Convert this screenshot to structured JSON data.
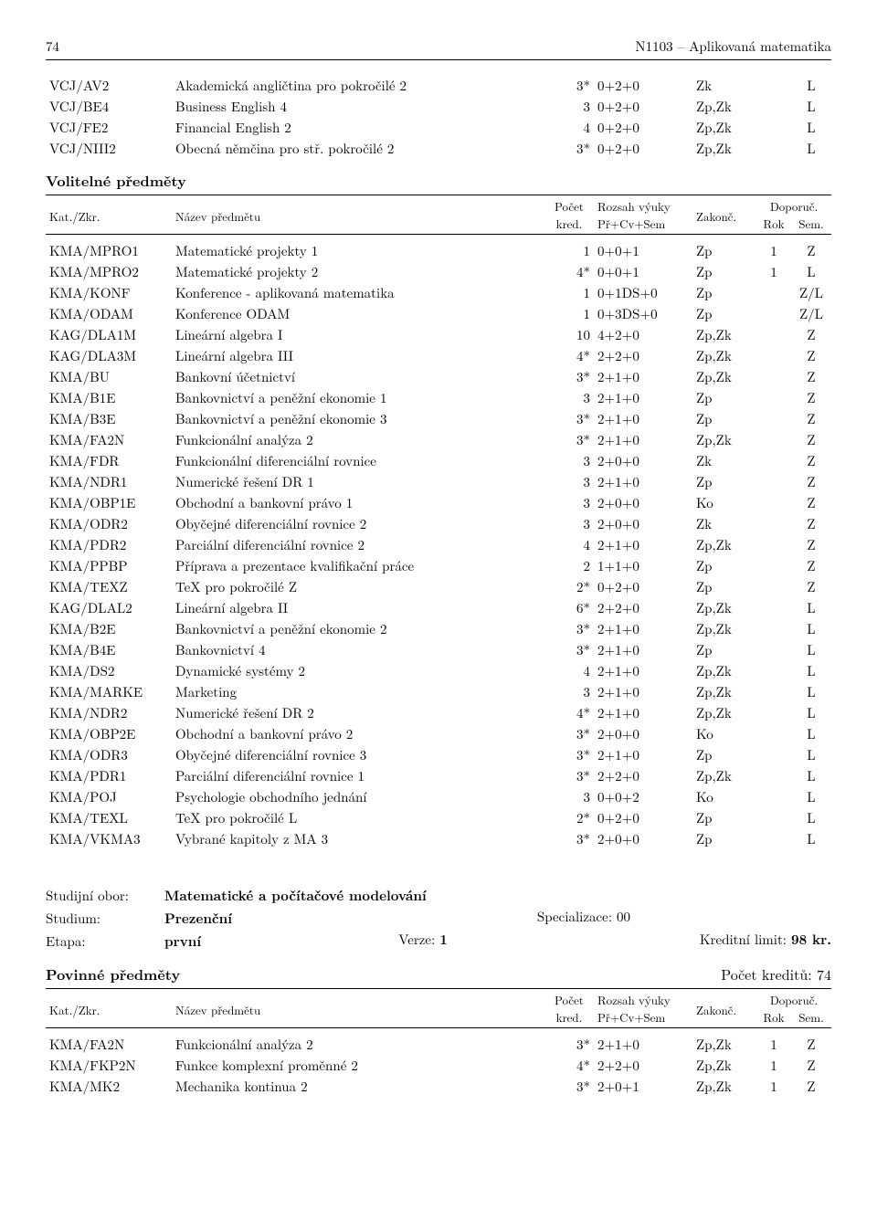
{
  "page_number": "74",
  "header_title": "N1103 – Aplikovaná matematika",
  "top_courses": [
    {
      "code": "VCJ/AV2",
      "name": "Akademická angličtina pro pokročilé 2",
      "kred": "3*",
      "hours": "0+2+0",
      "zakon": "Zk",
      "rok": "",
      "sem": "L"
    },
    {
      "code": "VCJ/BE4",
      "name": "Business English 4",
      "kred": "3",
      "hours": "0+2+0",
      "zakon": "Zp,Zk",
      "rok": "",
      "sem": "L"
    },
    {
      "code": "VCJ/FE2",
      "name": "Financial English 2",
      "kred": "4",
      "hours": "0+2+0",
      "zakon": "Zp,Zk",
      "rok": "",
      "sem": "L"
    },
    {
      "code": "VCJ/NIII2",
      "name": "Obecná němčina pro stř. pokročilé 2",
      "kred": "3*",
      "hours": "0+2+0",
      "zakon": "Zp,Zk",
      "rok": "",
      "sem": "L"
    }
  ],
  "volitelne_title": "Volitelné předměty",
  "table_header": {
    "kat": "Kat./Zkr.",
    "nazev": "Název předmětu",
    "pocet": "Počet",
    "kred": "kred.",
    "rozsah": "Rozsah výuky",
    "prcvsem": "Př+Cv+Sem",
    "zakon": "Zakonč.",
    "doporuc": "Doporuč.",
    "rok": "Rok",
    "sem": "Sem."
  },
  "volitelne_courses": [
    {
      "code": "KMA/MPRO1",
      "name": "Matematické projekty 1",
      "kred": "1",
      "hours": "0+0+1",
      "zakon": "Zp",
      "rok": "1",
      "sem": "Z"
    },
    {
      "code": "KMA/MPRO2",
      "name": "Matematické projekty 2",
      "kred": "4*",
      "hours": "0+0+1",
      "zakon": "Zp",
      "rok": "1",
      "sem": "L"
    },
    {
      "code": "KMA/KONF",
      "name": "Konference - aplikovaná matematika",
      "kred": "1",
      "hours": "0+1DS+0",
      "zakon": "Zp",
      "rok": "",
      "sem": "Z/L"
    },
    {
      "code": "KMA/ODAM",
      "name": "Konference ODAM",
      "kred": "1",
      "hours": "0+3DS+0",
      "zakon": "Zp",
      "rok": "",
      "sem": "Z/L"
    },
    {
      "code": "KAG/DLA1M",
      "name": "Lineární algebra I",
      "kred": "10",
      "hours": "4+2+0",
      "zakon": "Zp,Zk",
      "rok": "",
      "sem": "Z"
    },
    {
      "code": "KAG/DLA3M",
      "name": "Lineární algebra III",
      "kred": "4*",
      "hours": "2+2+0",
      "zakon": "Zp,Zk",
      "rok": "",
      "sem": "Z"
    },
    {
      "code": "KMA/BU",
      "name": "Bankovní účetnictví",
      "kred": "3*",
      "hours": "2+1+0",
      "zakon": "Zp,Zk",
      "rok": "",
      "sem": "Z"
    },
    {
      "code": "KMA/B1E",
      "name": "Bankovnictví a peněžní ekonomie 1",
      "kred": "3",
      "hours": "2+1+0",
      "zakon": "Zp",
      "rok": "",
      "sem": "Z"
    },
    {
      "code": "KMA/B3E",
      "name": "Bankovnictví a peněžní ekonomie 3",
      "kred": "3*",
      "hours": "2+1+0",
      "zakon": "Zp",
      "rok": "",
      "sem": "Z"
    },
    {
      "code": "KMA/FA2N",
      "name": "Funkcionální analýza 2",
      "kred": "3*",
      "hours": "2+1+0",
      "zakon": "Zp,Zk",
      "rok": "",
      "sem": "Z"
    },
    {
      "code": "KMA/FDR",
      "name": "Funkcionální diferenciální rovnice",
      "kred": "3",
      "hours": "2+0+0",
      "zakon": "Zk",
      "rok": "",
      "sem": "Z"
    },
    {
      "code": "KMA/NDR1",
      "name": "Numerické řešení DR 1",
      "kred": "3",
      "hours": "2+1+0",
      "zakon": "Zp",
      "rok": "",
      "sem": "Z"
    },
    {
      "code": "KMA/OBP1E",
      "name": "Obchodní a bankovní právo 1",
      "kred": "3",
      "hours": "2+0+0",
      "zakon": "Ko",
      "rok": "",
      "sem": "Z"
    },
    {
      "code": "KMA/ODR2",
      "name": "Obyčejné diferenciální rovnice 2",
      "kred": "3",
      "hours": "2+0+0",
      "zakon": "Zk",
      "rok": "",
      "sem": "Z"
    },
    {
      "code": "KMA/PDR2",
      "name": "Parciální diferenciální rovnice 2",
      "kred": "4",
      "hours": "2+1+0",
      "zakon": "Zp,Zk",
      "rok": "",
      "sem": "Z"
    },
    {
      "code": "KMA/PPBP",
      "name": "Příprava a prezentace kvalifikační práce",
      "kred": "2",
      "hours": "1+1+0",
      "zakon": "Zp",
      "rok": "",
      "sem": "Z"
    },
    {
      "code": "KMA/TEXZ",
      "name": "TeX pro pokročilé Z",
      "kred": "2*",
      "hours": "0+2+0",
      "zakon": "Zp",
      "rok": "",
      "sem": "Z"
    },
    {
      "code": "KAG/DLAL2",
      "name": "Lineární algebra II",
      "kred": "6*",
      "hours": "2+2+0",
      "zakon": "Zp,Zk",
      "rok": "",
      "sem": "L"
    },
    {
      "code": "KMA/B2E",
      "name": "Bankovnictví a peněžní ekonomie 2",
      "kred": "3*",
      "hours": "2+1+0",
      "zakon": "Zp,Zk",
      "rok": "",
      "sem": "L"
    },
    {
      "code": "KMA/B4E",
      "name": "Bankovnictví 4",
      "kred": "3*",
      "hours": "2+1+0",
      "zakon": "Zp",
      "rok": "",
      "sem": "L"
    },
    {
      "code": "KMA/DS2",
      "name": "Dynamické systémy 2",
      "kred": "4",
      "hours": "2+1+0",
      "zakon": "Zp,Zk",
      "rok": "",
      "sem": "L"
    },
    {
      "code": "KMA/MARKE",
      "name": "Marketing",
      "kred": "3",
      "hours": "2+1+0",
      "zakon": "Zp,Zk",
      "rok": "",
      "sem": "L"
    },
    {
      "code": "KMA/NDR2",
      "name": "Numerické řešení DR 2",
      "kred": "4*",
      "hours": "2+1+0",
      "zakon": "Zp,Zk",
      "rok": "",
      "sem": "L"
    },
    {
      "code": "KMA/OBP2E",
      "name": "Obchodní a bankovní právo 2",
      "kred": "3*",
      "hours": "2+0+0",
      "zakon": "Ko",
      "rok": "",
      "sem": "L"
    },
    {
      "code": "KMA/ODR3",
      "name": "Obyčejné diferenciální rovnice 3",
      "kred": "3*",
      "hours": "2+1+0",
      "zakon": "Zp",
      "rok": "",
      "sem": "L"
    },
    {
      "code": "KMA/PDR1",
      "name": "Parciální diferenciální rovnice 1",
      "kred": "3*",
      "hours": "2+2+0",
      "zakon": "Zp,Zk",
      "rok": "",
      "sem": "L"
    },
    {
      "code": "KMA/POJ",
      "name": "Psychologie obchodního jednání",
      "kred": "3",
      "hours": "0+0+2",
      "zakon": "Ko",
      "rok": "",
      "sem": "L"
    },
    {
      "code": "KMA/TEXL",
      "name": "TeX pro pokročilé L",
      "kred": "2*",
      "hours": "0+2+0",
      "zakon": "Zp",
      "rok": "",
      "sem": "L"
    },
    {
      "code": "KMA/VKMA3",
      "name": "Vybrané kapitoly z MA 3",
      "kred": "3*",
      "hours": "2+0+0",
      "zakon": "Zp",
      "rok": "",
      "sem": "L"
    }
  ],
  "meta": {
    "obor_label": "Studijní obor:",
    "obor_value": "Matematické a počítačové modelování",
    "studium_label": "Studium:",
    "studium_value": "Prezenční",
    "spec_label": "Specializace: 00",
    "etapa_label": "Etapa:",
    "etapa_value": "první",
    "verze_label": "Verze: ",
    "verze_value": "1",
    "limit_label": "Kreditní limit: ",
    "limit_value": "98 kr."
  },
  "povinne_title": "Povinné předměty",
  "povinne_credits": "Počet kreditů: 74",
  "povinne_courses": [
    {
      "code": "KMA/FA2N",
      "name": "Funkcionální analýza 2",
      "kred": "3*",
      "hours": "2+1+0",
      "zakon": "Zp,Zk",
      "rok": "1",
      "sem": "Z"
    },
    {
      "code": "KMA/FKP2N",
      "name": "Funkce komplexní proměnné 2",
      "kred": "4*",
      "hours": "2+2+0",
      "zakon": "Zp,Zk",
      "rok": "1",
      "sem": "Z"
    },
    {
      "code": "KMA/MK2",
      "name": "Mechanika kontinua 2",
      "kred": "3*",
      "hours": "2+0+1",
      "zakon": "Zp,Zk",
      "rok": "1",
      "sem": "Z"
    }
  ]
}
